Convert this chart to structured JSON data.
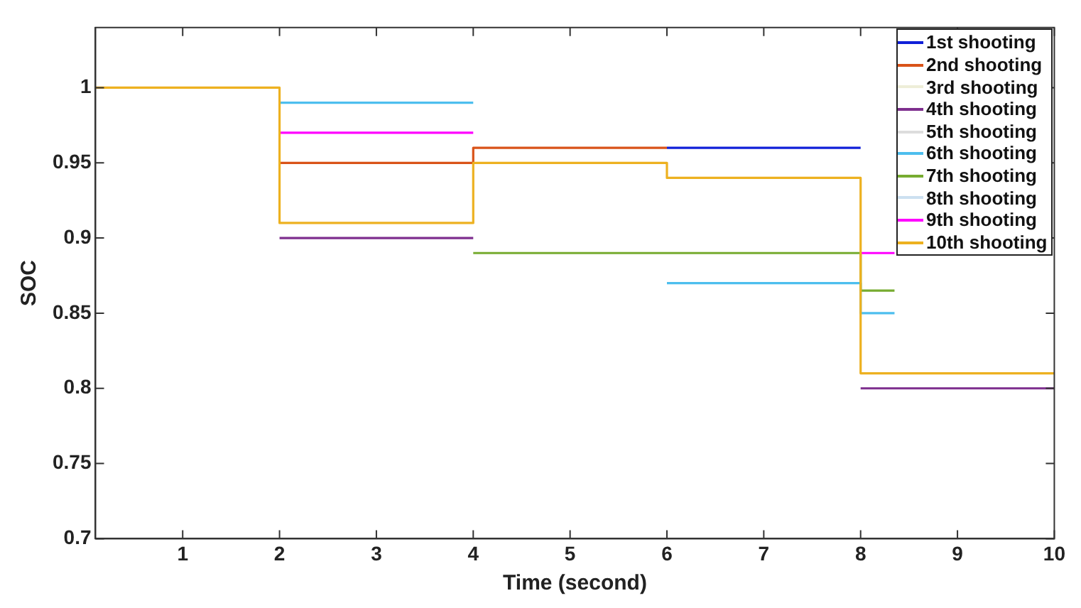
{
  "chart_data": {
    "type": "line",
    "xlabel": "Time (second)",
    "ylabel": "SOC",
    "xlim": [
      0.1,
      10
    ],
    "xticks": [
      1,
      2,
      3,
      4,
      5,
      6,
      7,
      8,
      9,
      10
    ],
    "ylim": [
      0.7,
      1.04
    ],
    "yticks": [
      0.7,
      0.75,
      0.8,
      0.85,
      0.9,
      0.95,
      1
    ],
    "grid": false,
    "legend": "top right",
    "marker": "none",
    "line_style": "solid",
    "series": [
      {
        "name": "1st shooting",
        "color": "#1020d8",
        "x": [
          6,
          8
        ],
        "values": [
          0.96,
          0.96
        ]
      },
      {
        "name": "2nd shooting",
        "color": "#d95319",
        "x": [
          2,
          4,
          4,
          6
        ],
        "values": [
          0.95,
          0.95,
          0.96,
          0.96
        ]
      },
      {
        "name": "3rd shooting",
        "color": "#eeeed8"
      },
      {
        "name": "4th shooting",
        "color": "#7e2f8e",
        "x": [
          2,
          4,
          null,
          8,
          10
        ],
        "values": [
          0.9,
          0.9,
          null,
          0.8,
          0.8
        ]
      },
      {
        "name": "5th shooting",
        "color": "#dddddd"
      },
      {
        "name": "6th shooting",
        "color": "#4dbeee",
        "x": [
          2,
          4,
          null,
          6,
          8,
          8,
          8.35
        ],
        "values": [
          0.99,
          0.99,
          null,
          0.87,
          0.87,
          0.85,
          0.85
        ]
      },
      {
        "name": "7th shooting",
        "color": "#77ac30",
        "x": [
          4,
          8,
          8,
          8.35
        ],
        "values": [
          0.89,
          0.89,
          0.865,
          0.865
        ]
      },
      {
        "name": "8th shooting",
        "color": "#cce0f0"
      },
      {
        "name": "9th shooting",
        "color": "#ff00ff",
        "x": [
          2,
          4,
          null,
          8,
          8.35
        ],
        "values": [
          0.97,
          0.97,
          null,
          0.89,
          0.89
        ]
      },
      {
        "name": "10th shooting",
        "color": "#edb120",
        "x": [
          0.1,
          2,
          2,
          4,
          4,
          6,
          6,
          8,
          8,
          10
        ],
        "values": [
          1,
          1,
          0.91,
          0.91,
          0.95,
          0.95,
          0.94,
          0.94,
          0.81,
          0.81
        ]
      }
    ]
  }
}
